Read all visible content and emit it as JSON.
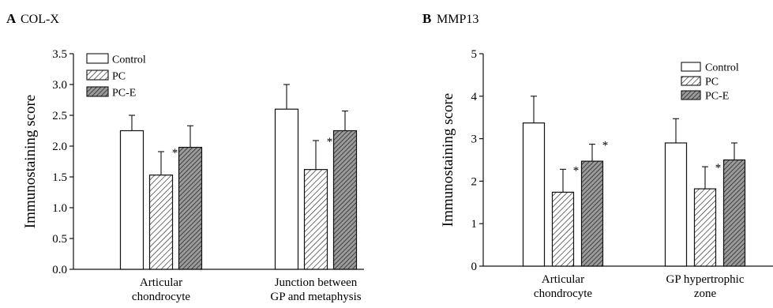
{
  "figure": {
    "panels": [
      {
        "letter": "A",
        "name": "COL-X"
      },
      {
        "letter": "B",
        "name": "MMP13"
      }
    ]
  },
  "chart_data": [
    {
      "type": "bar",
      "panel": "A",
      "title": "COL-X",
      "ylabel": "Immunostaining score",
      "ylim": [
        0,
        3.5
      ],
      "yticks": [
        "0.0",
        "0.5",
        "1.0",
        "1.5",
        "2.0",
        "2.5",
        "3.0",
        "3.5"
      ],
      "categories": [
        [
          "Articular",
          "chondrocyte"
        ],
        [
          "Junction between",
          "GP and metaphysis"
        ]
      ],
      "legend": {
        "position": "top-left"
      },
      "series": [
        {
          "name": "Control",
          "fill": "none",
          "values": [
            2.25,
            2.6
          ],
          "errors": [
            0.25,
            0.4
          ],
          "sig": [
            false,
            false
          ]
        },
        {
          "name": "PC",
          "fill": "light-hatch",
          "values": [
            1.53,
            1.62
          ],
          "errors": [
            0.38,
            0.47
          ],
          "sig": [
            true,
            true
          ]
        },
        {
          "name": "PC-E",
          "fill": "dark-hatch",
          "values": [
            1.98,
            2.25
          ],
          "errors": [
            0.35,
            0.32
          ],
          "sig": [
            false,
            false
          ]
        }
      ]
    },
    {
      "type": "bar",
      "panel": "B",
      "title": "MMP13",
      "ylabel": "Immunostaining score",
      "ylim": [
        0,
        5
      ],
      "yticks": [
        "0",
        "1",
        "2",
        "3",
        "4",
        "5"
      ],
      "categories": [
        [
          "Articular",
          "chondrocyte"
        ],
        [
          "GP hypertrophic",
          "zone"
        ]
      ],
      "legend": {
        "position": "top-right"
      },
      "series": [
        {
          "name": "Control",
          "fill": "none",
          "values": [
            3.37,
            2.9
          ],
          "errors": [
            0.63,
            0.57
          ],
          "sig": [
            false,
            false
          ]
        },
        {
          "name": "PC",
          "fill": "light-hatch",
          "values": [
            1.74,
            1.82
          ],
          "errors": [
            0.54,
            0.52
          ],
          "sig": [
            true,
            true
          ]
        },
        {
          "name": "PC-E",
          "fill": "dark-hatch",
          "values": [
            2.47,
            2.5
          ],
          "errors": [
            0.4,
            0.4
          ],
          "sig": [
            true,
            false
          ]
        }
      ],
      "significance_symbol": "*"
    }
  ]
}
